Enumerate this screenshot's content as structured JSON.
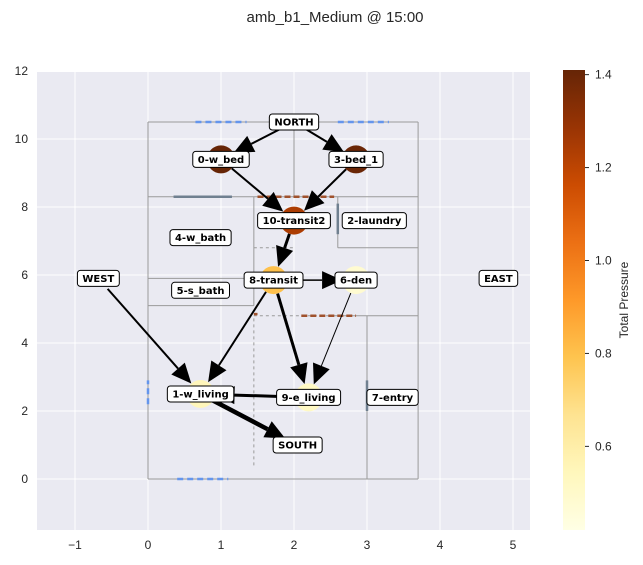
{
  "title": "amb_b1_Medium @ 15:00",
  "colorbar": {
    "label": "Total Pressure",
    "range": [
      0.42,
      1.41
    ],
    "ticks": [
      0.6,
      0.8,
      1.0,
      1.2,
      1.4
    ],
    "tick_labels": [
      "0.6",
      "0.8",
      "1.0",
      "1.2",
      "1.4"
    ],
    "colormap": [
      "#ffffe5",
      "#fff7bc",
      "#fee391",
      "#fec44f",
      "#fe9929",
      "#ec7014",
      "#cc4c02",
      "#993404",
      "#662506"
    ]
  },
  "axes": {
    "xlim": [
      -1.5,
      5.25
    ],
    "ylim": [
      -1.5,
      12.2
    ],
    "xticks": [
      -1,
      0,
      1,
      2,
      3,
      4,
      5
    ],
    "xtick_labels": [
      "−1",
      "0",
      "1",
      "2",
      "3",
      "4",
      "5"
    ],
    "yticks": [
      0,
      2,
      4,
      6,
      8,
      10,
      12
    ],
    "ytick_labels": [
      "0",
      "2",
      "4",
      "6",
      "8",
      "10",
      "12"
    ],
    "grid": true,
    "background": "#eaeaf2"
  },
  "nodes": [
    {
      "id": "north",
      "label": "NORTH",
      "x": 2.0,
      "y": 10.5,
      "pressure": null
    },
    {
      "id": "0-w_bed",
      "label": "0-w_bed",
      "x": 1.0,
      "y": 9.4,
      "pressure": 1.41
    },
    {
      "id": "3-bed_1",
      "label": "3-bed_1",
      "x": 2.85,
      "y": 9.4,
      "pressure": 1.4
    },
    {
      "id": "10-transit2",
      "label": "10-transit2",
      "x": 2.0,
      "y": 7.6,
      "pressure": 1.24
    },
    {
      "id": "2-laundry",
      "label": "2-laundry",
      "x": 3.1,
      "y": 7.6,
      "pressure": null
    },
    {
      "id": "4-w_bath",
      "label": "4-w_bath",
      "x": 0.72,
      "y": 7.1,
      "pressure": null
    },
    {
      "id": "west",
      "label": "WEST",
      "x": -0.68,
      "y": 5.9,
      "pressure": null
    },
    {
      "id": "east",
      "label": "EAST",
      "x": 4.8,
      "y": 5.9,
      "pressure": null
    },
    {
      "id": "8-transit",
      "label": "8-transit",
      "x": 1.72,
      "y": 5.85,
      "pressure": 0.8
    },
    {
      "id": "6-den",
      "label": "6-den",
      "x": 2.85,
      "y": 5.85,
      "pressure": 0.48
    },
    {
      "id": "5-s_bath",
      "label": "5-s_bath",
      "x": 0.72,
      "y": 5.55,
      "pressure": null
    },
    {
      "id": "1-w_living",
      "label": "1-w_living",
      "x": 0.72,
      "y": 2.5,
      "pressure": 0.55
    },
    {
      "id": "9-e_living",
      "label": "9-e_living",
      "x": 2.2,
      "y": 2.4,
      "pressure": 0.52
    },
    {
      "id": "7-entry",
      "label": "7-entry",
      "x": 3.35,
      "y": 2.4,
      "pressure": null
    },
    {
      "id": "south",
      "label": "SOUTH",
      "x": 2.05,
      "y": 1.0,
      "pressure": null
    }
  ],
  "edges": [
    {
      "from": "north",
      "to": "0-w_bed",
      "weight": 2
    },
    {
      "from": "north",
      "to": "3-bed_1",
      "weight": 2
    },
    {
      "from": "0-w_bed",
      "to": "10-transit2",
      "weight": 2
    },
    {
      "from": "3-bed_1",
      "to": "10-transit2",
      "weight": 2
    },
    {
      "from": "10-transit2",
      "to": "8-transit",
      "weight": 3
    },
    {
      "from": "8-transit",
      "to": "6-den",
      "weight": 1.5
    },
    {
      "from": "8-transit",
      "to": "1-w_living",
      "weight": 2
    },
    {
      "from": "8-transit",
      "to": "9-e_living",
      "weight": 3
    },
    {
      "from": "6-den",
      "to": "9-e_living",
      "weight": 1
    },
    {
      "from": "west",
      "to": "1-w_living",
      "weight": 2
    },
    {
      "from": "9-e_living",
      "to": "1-w_living",
      "weight": 3
    },
    {
      "from": "1-w_living",
      "to": "south",
      "weight": 4.5
    }
  ],
  "floorplan": {
    "walls": [
      [
        [
          0,
          0
        ],
        [
          3.7,
          0
        ]
      ],
      [
        [
          0,
          0
        ],
        [
          0,
          10.5
        ]
      ],
      [
        [
          0,
          10.5
        ],
        [
          3.7,
          10.5
        ]
      ],
      [
        [
          3.7,
          0
        ],
        [
          3.7,
          10.5
        ]
      ],
      [
        [
          0,
          8.3
        ],
        [
          3.7,
          8.3
        ]
      ],
      [
        [
          2.0,
          8.3
        ],
        [
          2.0,
          10.5
        ]
      ],
      [
        [
          0,
          5.9
        ],
        [
          1.45,
          5.9
        ]
      ],
      [
        [
          0,
          5.1
        ],
        [
          1.45,
          5.1
        ]
      ],
      [
        [
          1.45,
          5.1
        ],
        [
          1.45,
          8.3
        ]
      ],
      [
        [
          2.6,
          6.8
        ],
        [
          3.7,
          6.8
        ]
      ],
      [
        [
          2.6,
          6.8
        ],
        [
          2.6,
          8.3
        ]
      ],
      [
        [
          2.45,
          4.8
        ],
        [
          3.7,
          4.8
        ]
      ],
      [
        [
          3.0,
          0
        ],
        [
          3.0,
          4.8
        ]
      ]
    ],
    "dashed_walls": [
      [
        [
          1.45,
          0.4
        ],
        [
          1.45,
          4.8
        ]
      ],
      [
        [
          1.45,
          4.8
        ],
        [
          2.45,
          4.8
        ]
      ],
      [
        [
          1.45,
          6.8
        ],
        [
          2.0,
          6.8
        ]
      ]
    ],
    "windows": [
      [
        [
          0.65,
          10.5
        ],
        [
          1.35,
          10.5
        ]
      ],
      [
        [
          2.6,
          10.5
        ],
        [
          3.3,
          10.5
        ]
      ],
      [
        [
          0,
          2.2
        ],
        [
          0,
          2.9
        ]
      ],
      [
        [
          0.4,
          0
        ],
        [
          1.1,
          0
        ]
      ]
    ],
    "doors": [
      {
        "seg": [
          [
            0.35,
            8.3
          ],
          [
            1.15,
            8.3
          ]
        ],
        "color": "#708090"
      },
      {
        "seg": [
          [
            2.6,
            7.2
          ],
          [
            2.6,
            8.1
          ]
        ],
        "color": "#708090"
      },
      {
        "seg": [
          [
            3.0,
            2.0
          ],
          [
            3.0,
            2.9
          ]
        ],
        "color": "#708090"
      },
      {
        "seg": [
          [
            1.5,
            8.3
          ],
          [
            2.55,
            8.3
          ]
        ],
        "color": "#a0522d"
      },
      {
        "seg": [
          [
            2.1,
            4.8
          ],
          [
            2.85,
            4.8
          ]
        ],
        "color": "#a0522d"
      },
      {
        "seg": [
          [
            1.45,
            4.85
          ],
          [
            1.5,
            4.85
          ]
        ],
        "color": "#a0522d"
      }
    ]
  }
}
